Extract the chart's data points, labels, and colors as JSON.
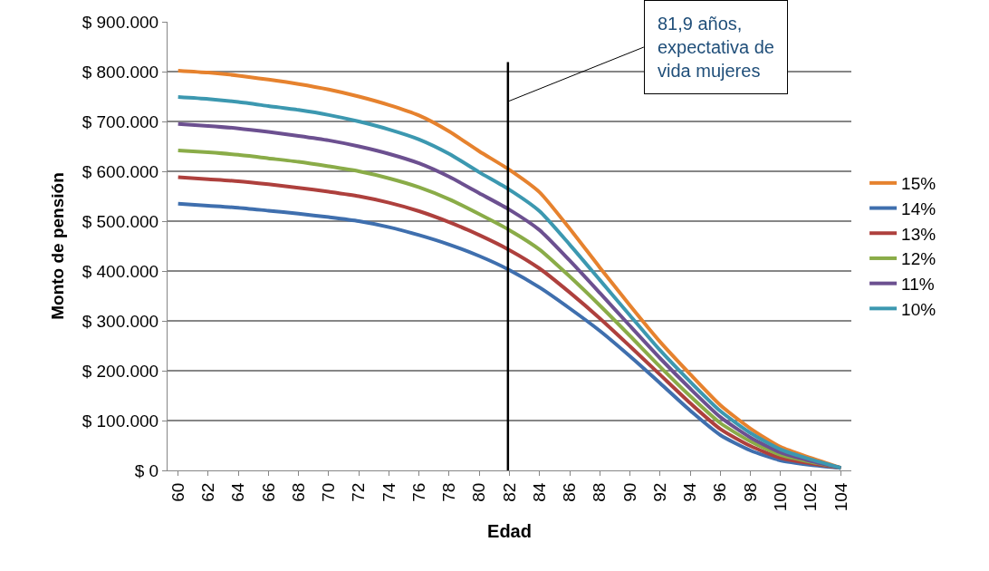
{
  "chart_data": {
    "type": "line",
    "xlabel": "Edad",
    "ylabel": "Monto de pensión",
    "x": [
      60,
      62,
      64,
      66,
      68,
      70,
      72,
      74,
      76,
      78,
      80,
      82,
      84,
      86,
      88,
      90,
      92,
      94,
      96,
      98,
      100,
      102,
      104
    ],
    "series": [
      {
        "name": "15%",
        "color": "#e6822e",
        "values": [
          802000,
          798000,
          792000,
          784000,
          775000,
          764000,
          750000,
          733000,
          712000,
          680000,
          640000,
          603000,
          558000,
          485000,
          407000,
          331000,
          258000,
          193000,
          131000,
          84000,
          47000,
          25000,
          5000
        ]
      },
      {
        "name": "14%",
        "color": "#3f6fae",
        "values": [
          535000,
          531000,
          527000,
          521000,
          515000,
          508000,
          500000,
          488000,
          472000,
          453000,
          430000,
          402000,
          367000,
          325000,
          280000,
          229000,
          175000,
          120000,
          71000,
          40000,
          20000,
          11000,
          5000
        ]
      },
      {
        "name": "13%",
        "color": "#ae403d",
        "values": [
          588000,
          584000,
          580000,
          574000,
          567000,
          559000,
          550000,
          537000,
          520000,
          498000,
          472000,
          442000,
          405000,
          357000,
          305000,
          249000,
          192000,
          135000,
          83000,
          49000,
          25000,
          14000,
          5000
        ]
      },
      {
        "name": "12%",
        "color": "#8aac48",
        "values": [
          642000,
          638000,
          633000,
          626000,
          619000,
          610000,
          600000,
          586000,
          568000,
          544000,
          514000,
          482000,
          443000,
          389000,
          331000,
          270000,
          208000,
          149000,
          95000,
          58000,
          31000,
          17000,
          5000
        ]
      },
      {
        "name": "11%",
        "color": "#6c5090",
        "values": [
          695000,
          691000,
          686000,
          679000,
          671000,
          662000,
          650000,
          635000,
          616000,
          589000,
          556000,
          523000,
          482000,
          421000,
          356000,
          290000,
          225000,
          164000,
          107000,
          66000,
          36000,
          19000,
          5000
        ]
      },
      {
        "name": "10%",
        "color": "#3c98b0",
        "values": [
          749000,
          745000,
          739000,
          731000,
          723000,
          713000,
          700000,
          684000,
          664000,
          635000,
          598000,
          563000,
          520000,
          453000,
          382000,
          311000,
          241000,
          178000,
          119000,
          75000,
          42000,
          22000,
          5000
        ]
      }
    ],
    "xlim": [
      59.3,
      104.7
    ],
    "xticks": [
      60,
      62,
      64,
      66,
      68,
      70,
      72,
      74,
      76,
      78,
      80,
      82,
      84,
      86,
      88,
      90,
      92,
      94,
      96,
      98,
      100,
      102,
      104
    ],
    "ylim": [
      0,
      900000
    ],
    "yticks": [
      {
        "value": 0,
        "label": "$ 0"
      },
      {
        "value": 100000,
        "label": "$ 100.000"
      },
      {
        "value": 200000,
        "label": "$ 200.000"
      },
      {
        "value": 300000,
        "label": "$ 300.000"
      },
      {
        "value": 400000,
        "label": "$ 400.000"
      },
      {
        "value": 500000,
        "label": "$ 500.000"
      },
      {
        "value": 600000,
        "label": "$ 600.000"
      },
      {
        "value": 700000,
        "label": "$ 700.000"
      },
      {
        "value": 800000,
        "label": "$ 800.000"
      },
      {
        "value": 900000,
        "label": "$ 900.000"
      }
    ],
    "ref_lines": [
      {
        "axis": "x",
        "value": 81.9,
        "color": "#000000"
      }
    ],
    "annotations": [
      {
        "text": "81,9 años,\nexpectativa de\nvida mujeres",
        "x": 81.9,
        "y": 740000
      }
    ],
    "grid": "y",
    "legend": "right",
    "marker": "none",
    "line_style": "solid"
  }
}
